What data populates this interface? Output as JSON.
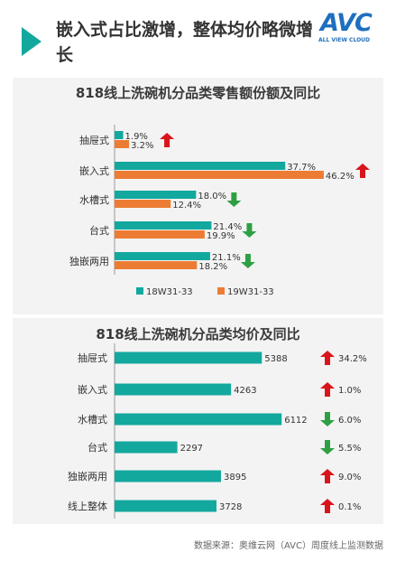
{
  "header": {
    "title": "嵌入式占比激增，整体均价略微增长"
  },
  "logo": {
    "text": "AVC",
    "tagline": "ALL VIEW CLOUD"
  },
  "colors": {
    "teal": "#13a89e",
    "orange": "#ec7c33",
    "up": "#d9141b",
    "down": "#2ea043"
  },
  "chart_data": [
    {
      "type": "bar",
      "orientation": "horizontal",
      "title": "818线上洗碗机分品类零售额份额及同比",
      "categories": [
        "抽屉式",
        "嵌入式",
        "水槽式",
        "台式",
        "独嵌两用"
      ],
      "series": [
        {
          "name": "18W31-33",
          "values": [
            1.9,
            37.7,
            18.0,
            21.4,
            21.1
          ],
          "labels": [
            "1.9%",
            "37.7%",
            "18.0%",
            "21.4%",
            "21.1%"
          ],
          "color": "#13a89e"
        },
        {
          "name": "19W31-33",
          "values": [
            3.2,
            46.2,
            12.4,
            19.9,
            18.2
          ],
          "labels": [
            "3.2%",
            "46.2%",
            "12.4%",
            "19.9%",
            "18.2%"
          ],
          "color": "#ec7c33"
        }
      ],
      "trend": [
        "up",
        "up",
        "down",
        "down",
        "down"
      ],
      "legend": "bottom",
      "xlim": [
        0,
        50
      ]
    },
    {
      "type": "bar",
      "orientation": "horizontal",
      "title": "818线上洗碗机分品类均价及同比",
      "categories": [
        "抽屉式",
        "嵌入式",
        "水槽式",
        "台式",
        "独嵌两用",
        "线上整体"
      ],
      "values": [
        5388,
        4263,
        6112,
        2297,
        3895,
        3728
      ],
      "labels": [
        "5388",
        "4263",
        "6112",
        "2297",
        "3895",
        "3728"
      ],
      "yoy": [
        {
          "dir": "up",
          "text": "34.2%"
        },
        {
          "dir": "up",
          "text": "1.0%"
        },
        {
          "dir": "down",
          "text": "6.0%"
        },
        {
          "dir": "down",
          "text": "5.5%"
        },
        {
          "dir": "up",
          "text": "9.0%"
        },
        {
          "dir": "up",
          "text": "0.1%"
        }
      ],
      "color": "#13a89e",
      "xlim": [
        0,
        6600
      ]
    }
  ],
  "footer": {
    "source": "数据来源：奥维云网（AVC）周度线上监测数据"
  }
}
